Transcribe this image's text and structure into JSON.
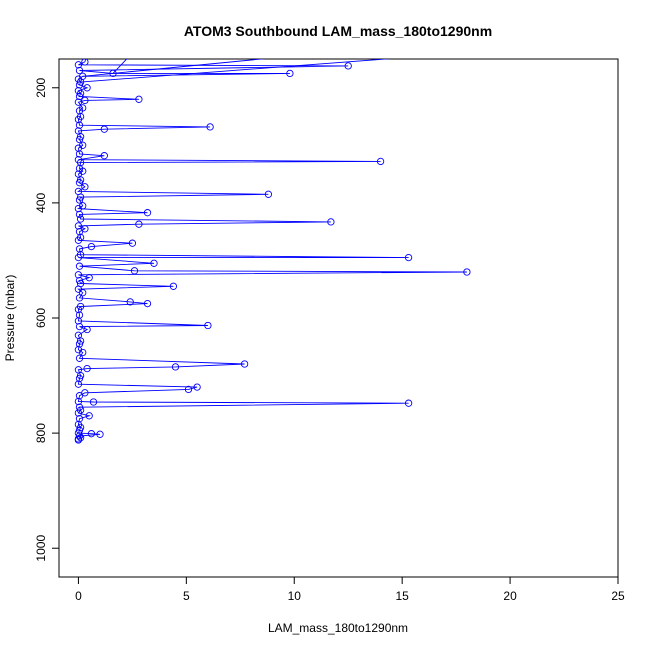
{
  "chart_data": {
    "type": "line",
    "title": "ATOM3 Southbound LAM_mass_180to1290nm",
    "xlabel": "LAM_mass_180to1290nm",
    "ylabel": "Pressure (mbar)",
    "xlim": [
      -0.9,
      25
    ],
    "ylim": [
      1050,
      150
    ],
    "y_inverted": true,
    "x_ticks": [
      "0",
      "5",
      "10",
      "15",
      "20",
      "25"
    ],
    "y_ticks": [
      "200",
      "400",
      "600",
      "800",
      "1000"
    ],
    "x_tick_values": [
      0,
      5,
      10,
      15,
      20,
      25
    ],
    "y_tick_values": [
      200,
      400,
      600,
      800,
      1000
    ],
    "series": [
      {
        "line_color": "#0000ff",
        "marker": "open-circle",
        "points": [
          [
            0.3,
            155
          ],
          [
            1.6,
            175
          ],
          [
            0.2,
            180
          ],
          [
            0.1,
            190
          ],
          [
            0.4,
            200
          ],
          [
            0.1,
            210
          ],
          [
            0.3,
            222
          ],
          [
            2.8,
            220
          ],
          [
            9.8,
            175
          ],
          [
            0.2,
            235
          ],
          [
            12.5,
            162
          ],
          [
            0.1,
            250
          ],
          [
            1.2,
            272
          ],
          [
            0.1,
            285
          ],
          [
            6.1,
            268
          ],
          [
            0.2,
            300
          ],
          [
            1.2,
            318
          ],
          [
            0.1,
            330
          ],
          [
            14.0,
            328
          ],
          [
            0.2,
            345
          ],
          [
            0.1,
            360
          ],
          [
            8.8,
            385
          ],
          [
            0.3,
            372
          ],
          [
            0.1,
            390
          ],
          [
            3.2,
            417
          ],
          [
            0.2,
            405
          ],
          [
            11.7,
            433
          ],
          [
            0.1,
            428
          ],
          [
            2.8,
            437
          ],
          [
            0.3,
            445
          ],
          [
            15.3,
            495
          ],
          [
            0.1,
            460
          ],
          [
            2.5,
            470
          ],
          [
            0.6,
            476
          ],
          [
            3.5,
            505
          ],
          [
            0.1,
            490
          ],
          [
            18.0,
            520
          ],
          [
            0.5,
            530
          ],
          [
            2.6,
            518
          ],
          [
            0.1,
            540
          ],
          [
            4.4,
            545
          ],
          [
            0.2,
            556
          ],
          [
            2.4,
            572
          ],
          [
            3.2,
            575
          ],
          [
            0.1,
            580
          ],
          [
            6.0,
            613
          ],
          [
            0.4,
            620
          ],
          [
            0.1,
            640
          ],
          [
            7.7,
            680
          ],
          [
            0.2,
            660
          ],
          [
            4.5,
            685
          ],
          [
            0.4,
            688
          ],
          [
            5.5,
            720
          ],
          [
            0.1,
            700
          ],
          [
            5.1,
            724
          ],
          [
            0.3,
            730
          ],
          [
            15.3,
            748
          ],
          [
            0.7,
            746
          ],
          [
            0.1,
            760
          ],
          [
            0.5,
            770
          ],
          [
            0.1,
            790
          ],
          [
            1.0,
            802
          ],
          [
            0.6,
            801
          ],
          [
            0.1,
            808
          ]
        ],
        "dense_points": [
          [
            0.0,
            160
          ],
          [
            0.05,
            170
          ],
          [
            0.0,
            185
          ],
          [
            0.05,
            195
          ],
          [
            0.0,
            205
          ],
          [
            0.05,
            215
          ],
          [
            0.0,
            225
          ],
          [
            0.05,
            240
          ],
          [
            0.0,
            255
          ],
          [
            0.05,
            265
          ],
          [
            0.0,
            275
          ],
          [
            0.05,
            290
          ],
          [
            0.0,
            305
          ],
          [
            0.05,
            315
          ],
          [
            0.0,
            325
          ],
          [
            0.05,
            340
          ],
          [
            0.0,
            350
          ],
          [
            0.05,
            365
          ],
          [
            0.0,
            380
          ],
          [
            0.05,
            395
          ],
          [
            0.0,
            410
          ],
          [
            0.05,
            420
          ],
          [
            0.0,
            440
          ],
          [
            0.05,
            450
          ],
          [
            0.0,
            465
          ],
          [
            0.05,
            480
          ],
          [
            0.0,
            495
          ],
          [
            0.05,
            510
          ],
          [
            0.0,
            525
          ],
          [
            0.05,
            535
          ],
          [
            0.0,
            550
          ],
          [
            0.05,
            565
          ],
          [
            0.0,
            585
          ],
          [
            0.05,
            595
          ],
          [
            0.0,
            605
          ],
          [
            0.05,
            615
          ],
          [
            0.0,
            630
          ],
          [
            0.05,
            645
          ],
          [
            0.0,
            655
          ],
          [
            0.05,
            670
          ],
          [
            0.0,
            690
          ],
          [
            0.05,
            705
          ],
          [
            0.0,
            715
          ],
          [
            0.05,
            735
          ],
          [
            0.0,
            745
          ],
          [
            0.05,
            755
          ],
          [
            0.0,
            765
          ],
          [
            0.05,
            775
          ],
          [
            0.0,
            785
          ],
          [
            0.05,
            795
          ],
          [
            0.0,
            800
          ],
          [
            0.05,
            805
          ],
          [
            0.0,
            810
          ],
          [
            0.0,
            812
          ]
        ]
      }
    ],
    "grid": false,
    "legend": "none",
    "colors": {
      "series": "#0000ff",
      "axis": "#000000",
      "background": "#ffffff"
    }
  }
}
